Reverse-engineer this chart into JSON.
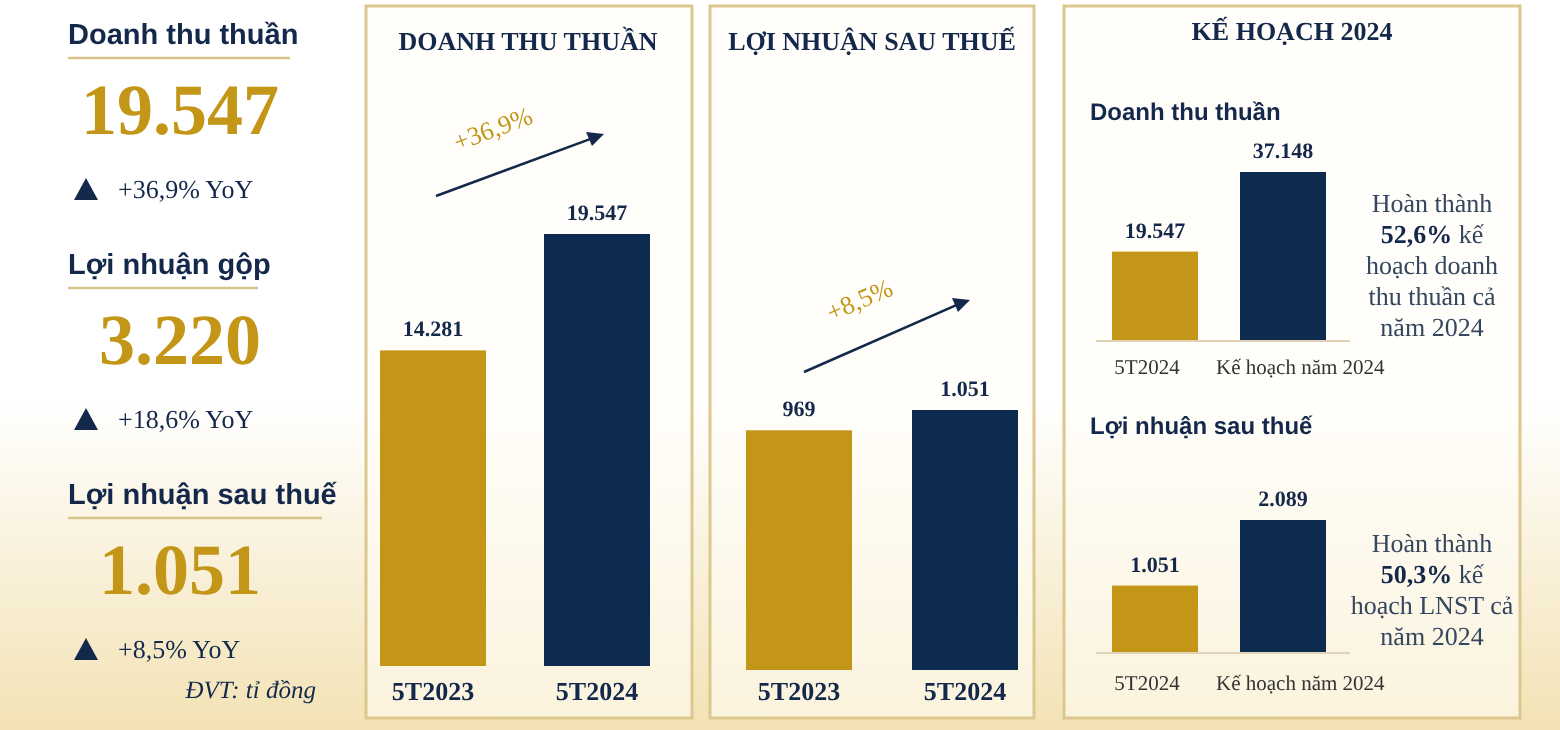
{
  "chart_data": [
    {
      "type": "other",
      "annotations": [
        "Doanh thu thuần",
        "19.547",
        "+36,9% YoY",
        "Lợi nhuận gộp",
        "3.220",
        "+18,6% YoY",
        "Lợi nhuận sau thuế",
        "1.051",
        "+8,5% YoY",
        "ĐVT: tỉ đồng"
      ]
    },
    {
      "type": "bar",
      "title": "DOANH THU THUẦN",
      "categories": [
        "5T2023",
        "5T2024"
      ],
      "values": [
        14281,
        19547
      ],
      "colors": [
        "#c39617",
        "#0d2a4f"
      ],
      "value_labels": [
        "14.281",
        "19.547"
      ],
      "annotations": [
        "+36,9%"
      ]
    },
    {
      "type": "bar",
      "title": "LỢI NHUẬN SAU THUẾ",
      "categories": [
        "5T2023",
        "5T2024"
      ],
      "values": [
        969,
        1051
      ],
      "colors": [
        "#c39617",
        "#0d2a4f"
      ],
      "value_labels": [
        "969",
        "1.051"
      ],
      "annotations": [
        "+8,5%"
      ]
    },
    {
      "type": "bar",
      "title": "KẾ HOẠCH 2024",
      "subtitle": "Doanh thu thuần",
      "categories": [
        "5T2024",
        "Kế hoạch năm 2024"
      ],
      "values": [
        19547,
        37148
      ],
      "colors": [
        "#c39617",
        "#0d2a4f"
      ],
      "value_labels": [
        "19.547",
        "37.148"
      ],
      "annotations": [
        "Hoàn thành 52,6% kế hoạch doanh thu thuần cả năm 2024"
      ]
    },
    {
      "type": "bar",
      "title": "Lợi nhuận sau thuế",
      "categories": [
        "5T2024",
        "Kế hoạch năm 2024"
      ],
      "values": [
        1051,
        2089
      ],
      "colors": [
        "#c39617",
        "#0d2a4f"
      ],
      "value_labels": [
        "1.051",
        "2.089"
      ],
      "annotations": [
        "Hoàn thành 50,3% kế hoạch LNST cả năm 2024"
      ]
    }
  ]
}
